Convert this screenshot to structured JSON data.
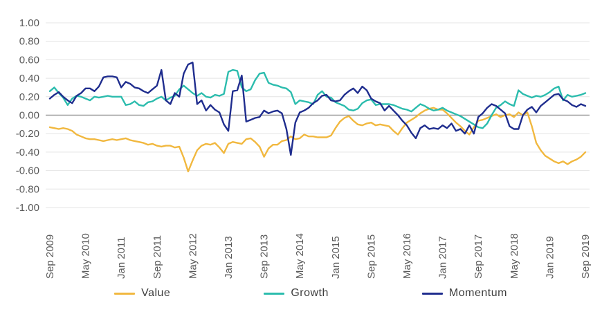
{
  "chart_data": {
    "type": "line",
    "title": "",
    "x_axis": {
      "frequency": "monthly",
      "start": "Sep 2009",
      "end": "Sep 2019",
      "tick_every_n_months": 8,
      "tick_labels": [
        "Sep 2009",
        "May 2010",
        "Jan 2011",
        "Sep 2011",
        "May 2012",
        "Jan 2013",
        "Sep 2013",
        "May 2014",
        "Jan 2015",
        "Sep 2015",
        "May 2016",
        "Jan 2017",
        "Sep 2017",
        "May 2018",
        "Jan 2019",
        "Sep 2019"
      ],
      "label_rotation_deg": -90
    },
    "y_axis": {
      "min": -1.0,
      "max": 1.0,
      "step": 0.2,
      "tick_labels": [
        "1.00",
        "0.80",
        "0.60",
        "0.40",
        "0.20",
        "0.00",
        "-0.20",
        "-0.40",
        "-0.60",
        "-0.80",
        "-1.00"
      ]
    },
    "grid": "horizontal",
    "legend_position": "bottom",
    "series": [
      {
        "name": "Value",
        "color": "#F1B83F",
        "values": [
          -0.13,
          -0.14,
          -0.15,
          -0.14,
          -0.15,
          -0.17,
          -0.21,
          -0.23,
          -0.25,
          -0.26,
          -0.26,
          -0.27,
          -0.28,
          -0.27,
          -0.26,
          -0.27,
          -0.26,
          -0.25,
          -0.27,
          -0.28,
          -0.29,
          -0.3,
          -0.32,
          -0.31,
          -0.33,
          -0.34,
          -0.33,
          -0.33,
          -0.35,
          -0.34,
          -0.46,
          -0.61,
          -0.49,
          -0.38,
          -0.33,
          -0.31,
          -0.32,
          -0.3,
          -0.35,
          -0.41,
          -0.31,
          -0.29,
          -0.3,
          -0.31,
          -0.26,
          -0.25,
          -0.29,
          -0.34,
          -0.45,
          -0.36,
          -0.32,
          -0.32,
          -0.28,
          -0.27,
          -0.23,
          -0.26,
          -0.25,
          -0.21,
          -0.23,
          -0.23,
          -0.24,
          -0.24,
          -0.24,
          -0.22,
          -0.14,
          -0.07,
          -0.03,
          -0.01,
          -0.06,
          -0.1,
          -0.11,
          -0.09,
          -0.08,
          -0.11,
          -0.1,
          -0.11,
          -0.12,
          -0.17,
          -0.21,
          -0.14,
          -0.08,
          -0.05,
          -0.02,
          0.02,
          0.05,
          0.07,
          0.08,
          0.06,
          0.06,
          0.02,
          -0.03,
          -0.08,
          -0.12,
          -0.17,
          -0.21,
          -0.13,
          -0.06,
          -0.05,
          -0.03,
          -0.01,
          0.01,
          -0.02,
          0.0,
          0.01,
          -0.02,
          0.03,
          0.0,
          0.03,
          -0.12,
          -0.3,
          -0.38,
          -0.44,
          -0.47,
          -0.5,
          -0.52,
          -0.5,
          -0.53,
          -0.5,
          -0.48,
          -0.45,
          -0.4
        ]
      },
      {
        "name": "Growth",
        "color": "#2BBCAD",
        "values": [
          0.26,
          0.3,
          0.24,
          0.19,
          0.11,
          0.18,
          0.21,
          0.2,
          0.18,
          0.16,
          0.2,
          0.19,
          0.2,
          0.21,
          0.2,
          0.2,
          0.2,
          0.11,
          0.12,
          0.15,
          0.11,
          0.1,
          0.14,
          0.15,
          0.18,
          0.2,
          0.16,
          0.19,
          0.21,
          0.28,
          0.32,
          0.28,
          0.24,
          0.21,
          0.24,
          0.2,
          0.19,
          0.22,
          0.21,
          0.23,
          0.47,
          0.49,
          0.48,
          0.3,
          0.26,
          0.28,
          0.38,
          0.45,
          0.46,
          0.35,
          0.33,
          0.32,
          0.3,
          0.29,
          0.25,
          0.12,
          0.16,
          0.15,
          0.14,
          0.12,
          0.22,
          0.26,
          0.2,
          0.19,
          0.14,
          0.12,
          0.1,
          0.06,
          0.05,
          0.07,
          0.13,
          0.16,
          0.17,
          0.11,
          0.12,
          0.12,
          0.12,
          0.11,
          0.09,
          0.07,
          0.06,
          0.04,
          0.08,
          0.12,
          0.1,
          0.07,
          0.05,
          0.06,
          0.08,
          0.05,
          0.03,
          0.01,
          -0.01,
          -0.04,
          -0.07,
          -0.1,
          -0.13,
          -0.14,
          -0.09,
          0.0,
          0.08,
          0.11,
          0.15,
          0.12,
          0.1,
          0.27,
          0.23,
          0.21,
          0.19,
          0.21,
          0.2,
          0.22,
          0.25,
          0.29,
          0.31,
          0.16,
          0.22,
          0.2,
          0.21,
          0.22,
          0.24
        ]
      },
      {
        "name": "Momentum",
        "color": "#1F2D8E",
        "values": [
          0.18,
          0.22,
          0.25,
          0.2,
          0.16,
          0.13,
          0.21,
          0.24,
          0.29,
          0.29,
          0.26,
          0.31,
          0.41,
          0.42,
          0.42,
          0.41,
          0.3,
          0.36,
          0.34,
          0.3,
          0.29,
          0.26,
          0.24,
          0.28,
          0.32,
          0.49,
          0.16,
          0.12,
          0.24,
          0.2,
          0.45,
          0.55,
          0.57,
          0.12,
          0.16,
          0.05,
          0.11,
          0.06,
          0.03,
          -0.1,
          -0.17,
          0.26,
          0.27,
          0.43,
          -0.07,
          -0.05,
          -0.03,
          -0.02,
          0.05,
          0.02,
          0.04,
          0.05,
          0.02,
          -0.15,
          -0.43,
          -0.08,
          0.03,
          0.05,
          0.08,
          0.13,
          0.16,
          0.21,
          0.22,
          0.16,
          0.15,
          0.16,
          0.22,
          0.26,
          0.29,
          0.24,
          0.31,
          0.27,
          0.18,
          0.15,
          0.13,
          0.05,
          0.1,
          0.05,
          0.0,
          -0.06,
          -0.11,
          -0.19,
          -0.25,
          -0.14,
          -0.11,
          -0.15,
          -0.14,
          -0.15,
          -0.11,
          -0.14,
          -0.09,
          -0.17,
          -0.15,
          -0.2,
          -0.11,
          -0.2,
          -0.02,
          0.02,
          0.08,
          0.12,
          0.1,
          0.06,
          0.02,
          -0.12,
          -0.15,
          -0.15,
          0.0,
          0.06,
          0.09,
          0.03,
          0.1,
          0.14,
          0.18,
          0.22,
          0.23,
          0.17,
          0.15,
          0.11,
          0.09,
          0.12,
          0.1
        ]
      }
    ]
  },
  "colors": {
    "background": "#FFFFFF",
    "gridline": "#E4E4E4",
    "zero_line": "#9B9B9B",
    "axis_text": "#595959",
    "legend_text": "#3D3D3D"
  }
}
